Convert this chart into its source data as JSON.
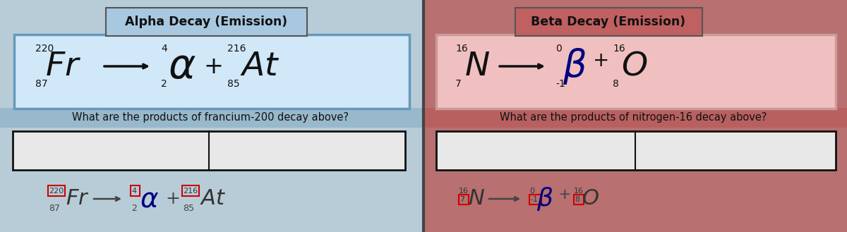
{
  "bg_color": "#c8c8c8",
  "left_panel_bg": "#b8ccd8",
  "right_panel_bg": "#b87070",
  "title_left_bg": "#a8c8e0",
  "title_right_bg": "#c06060",
  "eq_box_left_bg": "#d0e8f8",
  "eq_box_right_bg": "#f0c0c0",
  "title_left": "Alpha Decay (Emission)",
  "title_right": "Beta Decay (Emission)",
  "question_left": "What are the products of francium-200 decay above?",
  "question_right": "What are the products of nitrogen-16 decay above?",
  "q_band_left_bg": "#98b8cc",
  "q_band_right_bg": "#b86060",
  "answer_box_bg": "#e8e8e8",
  "answer_box_border": "#111111",
  "red_box_color": "#cc0000",
  "blue_color": "#000080",
  "dark_color": "#111111",
  "gray_color": "#444444"
}
